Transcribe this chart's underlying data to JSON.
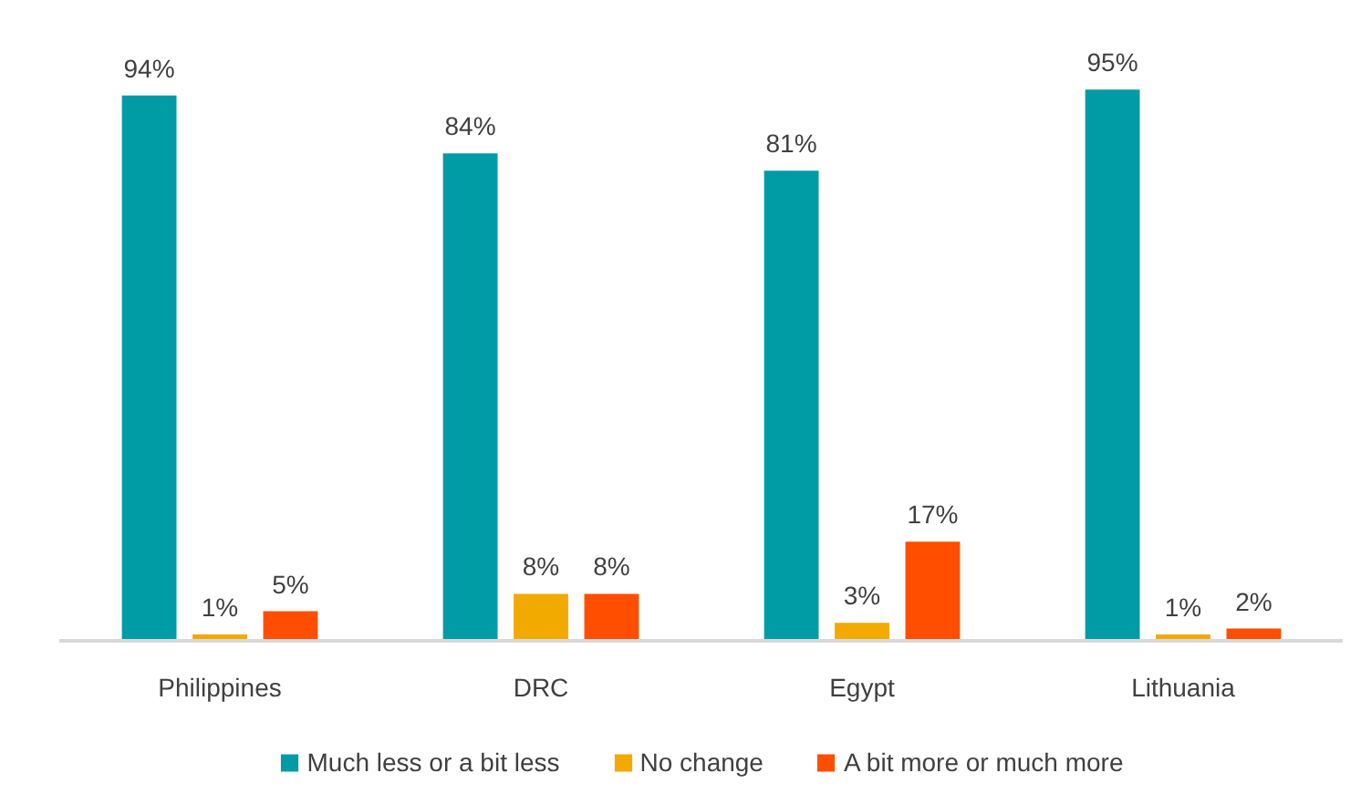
{
  "chart_data": {
    "type": "bar",
    "categories": [
      "Philippines",
      "DRC",
      "Egypt",
      "Lithuania"
    ],
    "series": [
      {
        "name": "Much less or a bit less",
        "color": "#009ca6",
        "values": [
          94,
          84,
          81,
          95
        ],
        "value_labels": [
          "94%",
          "84%",
          "81%",
          "95%"
        ]
      },
      {
        "name": "No change",
        "color": "#f2a900",
        "values": [
          1,
          8,
          3,
          1
        ],
        "value_labels": [
          "1%",
          "8%",
          "3%",
          "1%"
        ]
      },
      {
        "name": "A bit more or much more",
        "color": "#ff4e00",
        "values": [
          5,
          8,
          17,
          2
        ],
        "value_labels": [
          "5%",
          "8%",
          "17%",
          "2%"
        ]
      }
    ],
    "grid": false,
    "legend": "bottom"
  }
}
